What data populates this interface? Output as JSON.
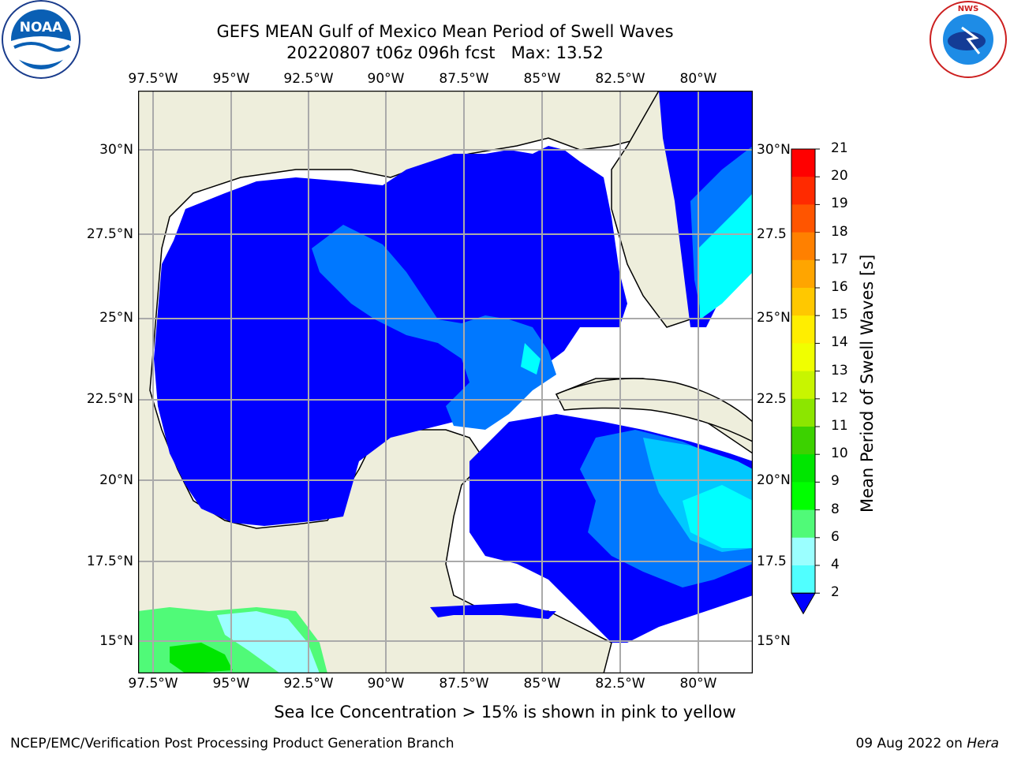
{
  "title": {
    "line1": "GEFS MEAN Gulf of Mexico Mean Period of Swell Waves",
    "line2": "20220807 t06z 096h fcst   Max: 13.52"
  },
  "logos": {
    "left": "noaa-logo",
    "right": "national-weather-service-logo"
  },
  "axes": {
    "lon_labels": [
      "97.5°W",
      "95°W",
      "92.5°W",
      "90°W",
      "87.5°W",
      "85°W",
      "82.5°W",
      "80°W"
    ],
    "lat_labels_left": [
      "30°N",
      "27.5°N",
      "25°N",
      "22.5°N",
      "20°N",
      "17.5°N",
      "15°N"
    ],
    "lat_labels_right": [
      "30°N",
      "27.5",
      "25°N",
      "22.5",
      "20°N",
      "17.5",
      "15°N"
    ]
  },
  "colorbar": {
    "label": "Mean Period of Swell Waves [s]",
    "ticks": [
      "21",
      "20",
      "19",
      "18",
      "17",
      "16",
      "15",
      "14",
      "13",
      "12",
      "11",
      "10",
      "9",
      "8",
      "6",
      "4",
      "2"
    ],
    "colors": [
      "#ff0000",
      "#ff2a00",
      "#ff5500",
      "#ff8000",
      "#ffa500",
      "#ffc800",
      "#ffee00",
      "#f0ff00",
      "#c8f500",
      "#8ce600",
      "#3cd200",
      "#00e600",
      "#00ff00",
      "#50fa78",
      "#9bffff",
      "#50ffff",
      "#00ffff",
      "#00c8ff",
      "#0078ff",
      "#0000ff"
    ]
  },
  "map": {
    "region": "Gulf of Mexico",
    "land_color": "#eeeedc",
    "sea_missing_color": "#ffffff",
    "swell_colors": {
      "lt2": "#0000ff",
      "2_4": "#0078ff",
      "4_6": "#00c8ff",
      "6_8": "#00ffff",
      "8_9": "#9bffff",
      "9_10": "#50fa78",
      "10_11": "#00e600"
    }
  },
  "footer": {
    "note": "Sea Ice Concentration > 15% is shown in pink to yellow",
    "left": "NCEP/EMC/Verification Post Processing Product Generation Branch",
    "right_date": "09 Aug 2022 on ",
    "right_host": "Hera"
  }
}
